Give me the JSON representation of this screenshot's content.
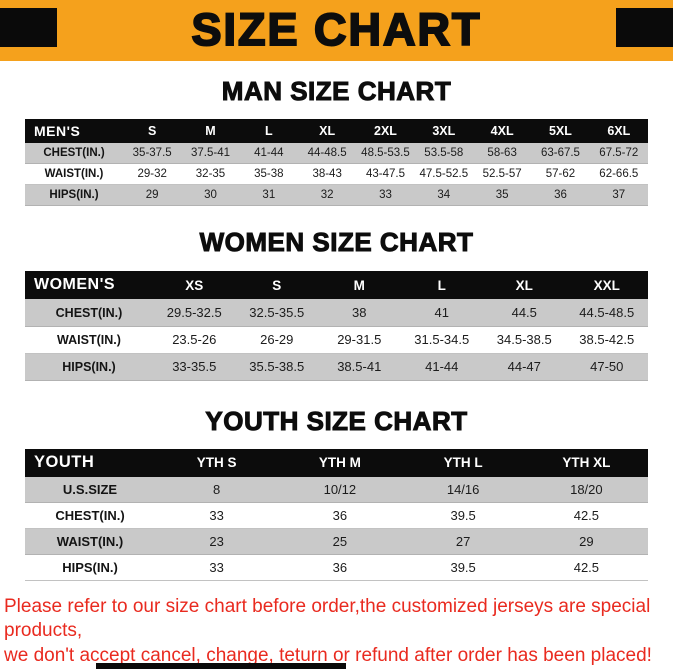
{
  "banner": {
    "title": "SIZE CHART"
  },
  "colors": {
    "banner_bg": "#f5a11c",
    "table_header_bg": "#0c0c0c",
    "stripe_row_bg": "#c9c9c9",
    "footer_text": "#e92a1f"
  },
  "sections": [
    {
      "heading": "MAN SIZE CHART",
      "table": {
        "header": [
          "MEN'S",
          "S",
          "M",
          "L",
          "XL",
          "2XL",
          "3XL",
          "4XL",
          "5XL",
          "6XL"
        ],
        "rows": [
          [
            "CHEST(IN.)",
            "35-37.5",
            "37.5-41",
            "41-44",
            "44-48.5",
            "48.5-53.5",
            "53.5-58",
            "58-63",
            "63-67.5",
            "67.5-72"
          ],
          [
            "WAIST(IN.)",
            "29-32",
            "32-35",
            "35-38",
            "38-43",
            "43-47.5",
            "47.5-52.5",
            "52.5-57",
            "57-62",
            "62-66.5"
          ],
          [
            "HIPS(IN.)",
            "29",
            "30",
            "31",
            "32",
            "33",
            "34",
            "35",
            "36",
            "37"
          ]
        ]
      }
    },
    {
      "heading": "WOMEN SIZE CHART",
      "table": {
        "header": [
          "WOMEN'S",
          "XS",
          "S",
          "M",
          "L",
          "XL",
          "XXL"
        ],
        "rows": [
          [
            "CHEST(IN.)",
            "29.5-32.5",
            "32.5-35.5",
            "38",
            "41",
            "44.5",
            "44.5-48.5"
          ],
          [
            "WAIST(IN.)",
            "23.5-26",
            "26-29",
            "29-31.5",
            "31.5-34.5",
            "34.5-38.5",
            "38.5-42.5"
          ],
          [
            "HIPS(IN.)",
            "33-35.5",
            "35.5-38.5",
            "38.5-41",
            "41-44",
            "44-47",
            "47-50"
          ]
        ]
      }
    },
    {
      "heading": "YOUTH SIZE CHART",
      "table": {
        "header": [
          "YOUTH",
          "YTH S",
          "YTH M",
          "YTH L",
          "YTH XL"
        ],
        "rows": [
          [
            "U.S.SIZE",
            "8",
            "10/12",
            "14/16",
            "18/20"
          ],
          [
            "CHEST(IN.)",
            "33",
            "36",
            "39.5",
            "42.5"
          ],
          [
            "WAIST(IN.)",
            "23",
            "25",
            "27",
            "29"
          ],
          [
            "HIPS(IN.)",
            "33",
            "36",
            "39.5",
            "42.5"
          ]
        ]
      }
    }
  ],
  "footer": {
    "line1": "Please refer to our size chart before order,the customized jerseys are special products,",
    "line2": "we don't accept cancel, change, teturn or refund after order has been placed!"
  }
}
